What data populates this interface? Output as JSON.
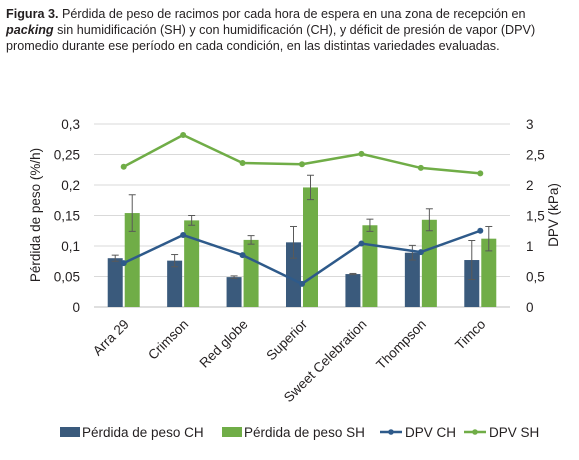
{
  "caption": {
    "label": "Figura 3.",
    "text_before": " Pérdida de peso de racimos por cada hora de espera en una zona de recepción en ",
    "keyword": "packing",
    "text_after": " sin humidificación (SH) y con humidificación (CH), y déficit de presión de vapor (DPV) promedio durante ese período en cada condición, en las distintas variedades evaluadas."
  },
  "colors": {
    "bar_ch": "#3a5a7c",
    "bar_sh": "#70ad47",
    "line_ch": "#2e5a8a",
    "line_sh": "#70ad47",
    "grid": "#d9d9d9",
    "error": "#595959"
  },
  "chart_data": {
    "type": "bar",
    "categories": [
      "Arra 29",
      "Crimson",
      "Red globe",
      "Superior",
      "Sweet Celebration",
      "Thompson",
      "Timco"
    ],
    "ylabel": "Pérdida de peso (%/h)",
    "y2label": "DPV (kPa)",
    "ylim": [
      0,
      0.3
    ],
    "y2lim": [
      0,
      3
    ],
    "yticks": [
      "0",
      "0,05",
      "0,1",
      "0,15",
      "0,2",
      "0,25",
      "0,3"
    ],
    "y2ticks": [
      "0",
      "0,5",
      "1",
      "1,5",
      "2",
      "2,5",
      "3"
    ],
    "grid": true,
    "legend_position": "bottom",
    "bar_series": [
      {
        "name": "Pérdida de peso CH",
        "values": [
          0.08,
          0.076,
          0.049,
          0.106,
          0.054,
          0.089,
          0.077
        ],
        "errors": [
          0.005,
          0.01,
          0.002,
          0.026,
          0.001,
          0.012,
          0.032
        ]
      },
      {
        "name": "Pérdida de peso SH",
        "values": [
          0.154,
          0.142,
          0.11,
          0.196,
          0.134,
          0.143,
          0.112
        ],
        "errors": [
          0.03,
          0.008,
          0.007,
          0.02,
          0.01,
          0.018,
          0.02
        ]
      }
    ],
    "line_series": [
      {
        "name": "DPV CH",
        "values": [
          0.72,
          1.18,
          0.85,
          0.38,
          1.04,
          0.9,
          1.25
        ]
      },
      {
        "name": "DPV SH",
        "values": [
          2.3,
          2.82,
          2.36,
          2.34,
          2.51,
          2.28,
          2.19
        ]
      }
    ]
  }
}
